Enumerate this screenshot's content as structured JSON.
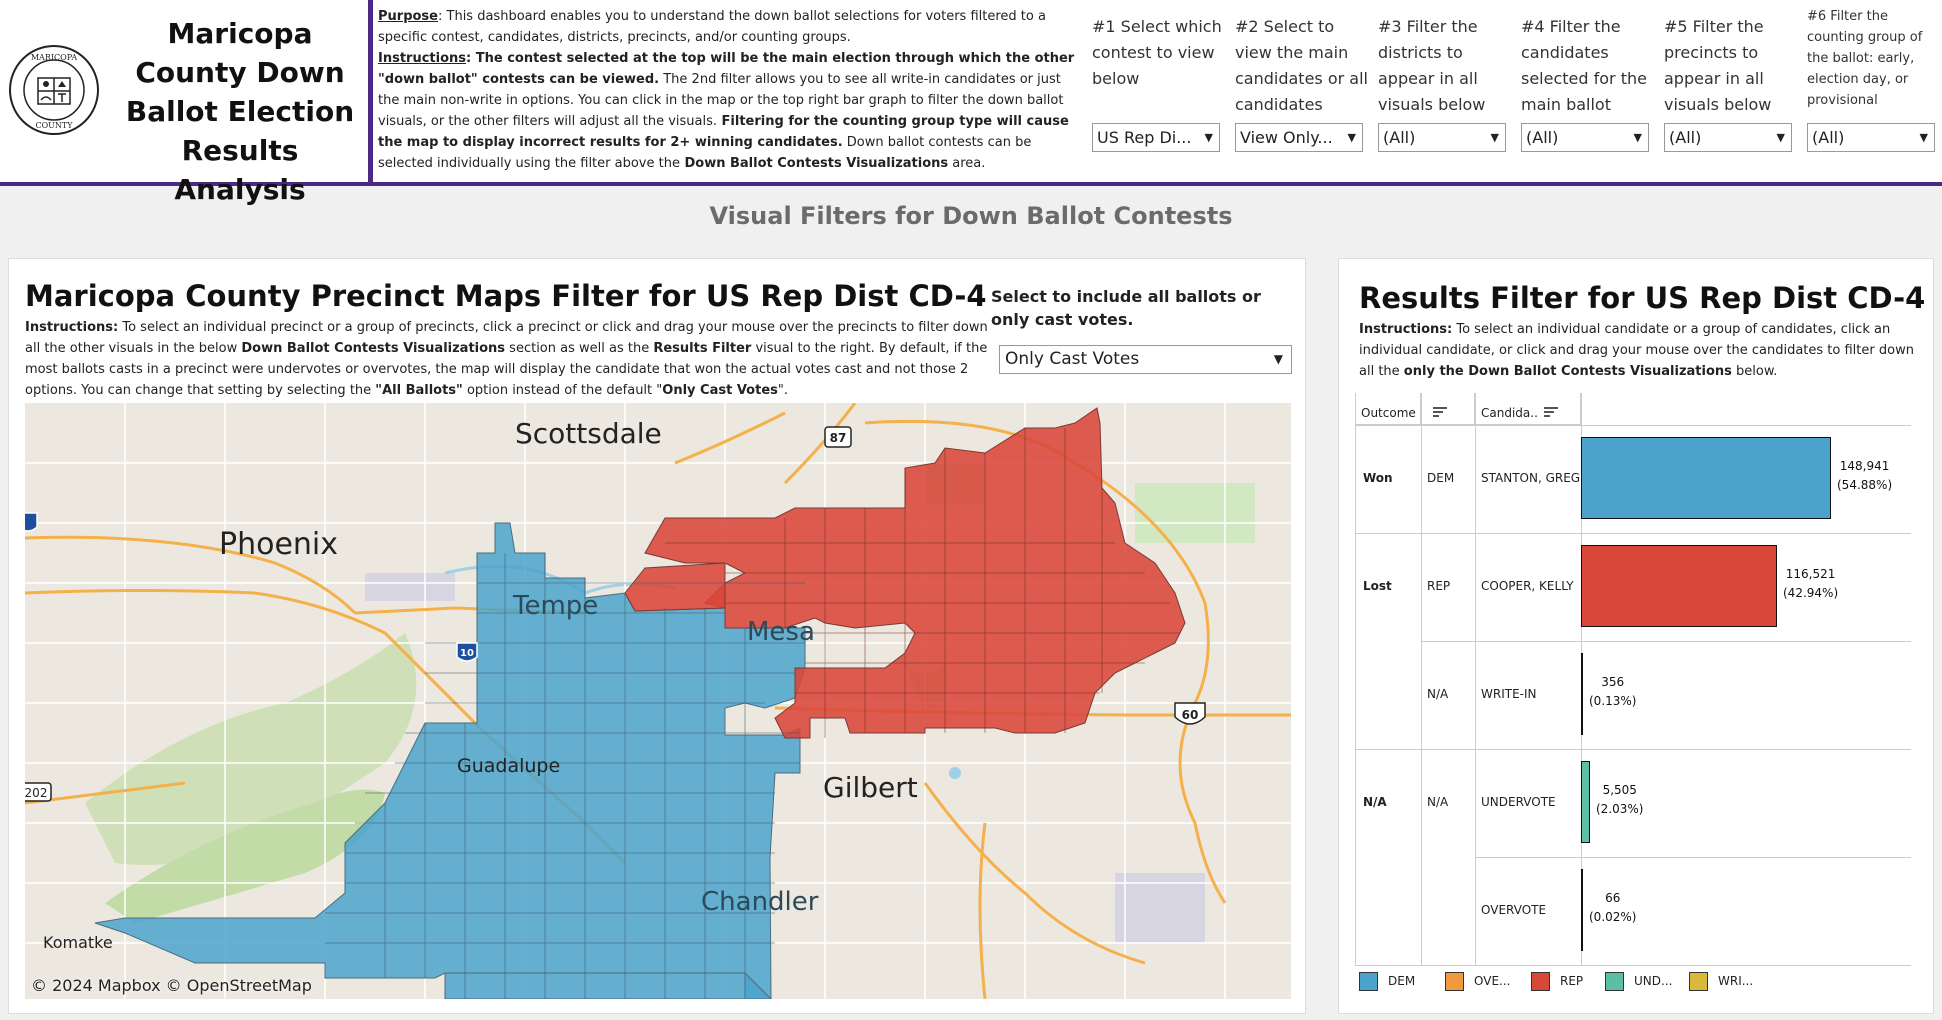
{
  "header": {
    "title": "Maricopa County Down Ballot Election Results Analysis",
    "seal_text_top": "MARICOPA",
    "seal_text_bottom": "COUNTY",
    "purpose_label": "Purpose",
    "purpose_text": ": This dashboard enables you to understand the down ballot selections for voters filtered to a specific contest, candidates, districts, precincts, and/or counting groups.",
    "instructions_label": "Instructions",
    "instructions_bold": ": The contest selected at the top will be the main election through which the other \"down ballot\" contests can be viewed.",
    "instructions_text1": " The 2nd filter allows you to see all write-in candidates or just the main non-write in options. You can click in the map or the top right bar graph to filter the down ballot visuals, or the other filters will adjust all the visuals.",
    "instructions_bold2": " Filtering for the counting group type will cause the map to display incorrect results for 2+ winning candidates.",
    "instructions_text2": " Down ballot contests can be selected individually using the filter above the",
    "instructions_bold3": " Down Ballot Contests Visualizations",
    "instructions_text3": " area."
  },
  "filters": [
    {
      "label": "#1 Select which contest to view below",
      "value": "US Rep Di..."
    },
    {
      "label": "#2 Select to view the main candidates or all candidates",
      "value": "View Only..."
    },
    {
      "label": "#3 Filter the districts to appear in all visuals below",
      "value": "(All)"
    },
    {
      "label": "#4 Filter the candidates selected for the main ballot",
      "value": "(All)"
    },
    {
      "label": "#5 Filter the precincts to appear in all visuals below",
      "value": "(All)"
    },
    {
      "label": "#6 Filter the counting group of the ballot: early, election day, or provisional",
      "value": "(All)"
    }
  ],
  "section_title": "Visual Filters for Down Ballot Contests",
  "map_panel": {
    "title": "Maricopa County Precinct Maps Filter for US Rep Dist CD-4",
    "instr_label": "Instructions:",
    "instr_text1": " To select an individual precinct or a group of precincts, click a precinct or click and drag your mouse over the precincts to filter down all the other visuals in the below ",
    "instr_bold1": "Down Ballot Contests Visualizations",
    "instr_text2": " section as well as the ",
    "instr_bold2": "Results Filter",
    "instr_text3": " visual to the right. By default, if the most ballots casts in a precinct were undervotes or overvotes, the map will display the candidate that won the actual votes cast and not those 2 options. You can change that setting by selecting the ",
    "instr_bold3": "\"All Ballots\"",
    "instr_text4": " option instead of the default \"",
    "instr_bold4": "Only Cast Votes",
    "instr_text5": "\".",
    "cast_label": "Select to include all ballots or only cast votes.",
    "cast_value": "Only Cast Votes",
    "map_labels": {
      "scottsdale": "Scottsdale",
      "phoenix": "Phoenix",
      "tempe": "Tempe",
      "mesa": "Mesa",
      "guadalupe": "Guadalupe",
      "gilbert": "Gilbert",
      "chandler": "Chandler",
      "komatke": "Komatke",
      "hwy87": "87",
      "hwy10": "10",
      "hwy60": "60",
      "hwy202": "202"
    },
    "attribution": "© 2024 Mapbox  © OpenStreetMap",
    "colors": {
      "dem": "#4ba3cc",
      "rep": "#d9463a",
      "water": "#9fd0e8",
      "park": "#c6e3b4",
      "road": "#f4b04b"
    }
  },
  "results_panel": {
    "title": "Results Filter for US Rep Dist CD-4",
    "instr_label": "Instructions:",
    "instr_text1": " To select an individual candidate or a group of candidates, click an individual candidate, or click and drag your mouse over the candidates to filter down all the ",
    "instr_bold": "only the Down Ballot Contests Visualizations",
    "instr_text2": " below.",
    "col_outcome": "Outcome",
    "col_candidate": "Candida..",
    "rows": [
      {
        "outcome": "Won",
        "party": "DEM",
        "candidate": "STANTON, GREG",
        "votes": "148,941",
        "pct": "(54.88%)",
        "share": 54.88,
        "color": "#4ba3cc"
      },
      {
        "outcome": "Lost",
        "party": "REP",
        "candidate": "COOPER, KELLY",
        "votes": "116,521",
        "pct": "(42.94%)",
        "share": 42.94,
        "color": "#d9463a"
      },
      {
        "outcome": "",
        "party": "N/A",
        "candidate": "WRITE-IN",
        "votes": "356",
        "pct": "(0.13%)",
        "share": 0.13,
        "color": "#d9b93a"
      },
      {
        "outcome": "N/A",
        "party": "N/A",
        "candidate": "UNDERVOTE",
        "votes": "5,505",
        "pct": "(2.03%)",
        "share": 2.03,
        "color": "#5bbfa5"
      },
      {
        "outcome": "",
        "party": "",
        "candidate": "OVERVOTE",
        "votes": "66",
        "pct": "(0.02%)",
        "share": 0.02,
        "color": "#ef9a3e"
      }
    ],
    "legend": [
      {
        "label": "DEM",
        "color": "#4ba3cc"
      },
      {
        "label": "OVE...",
        "color": "#ef9a3e"
      },
      {
        "label": "REP",
        "color": "#d9463a"
      },
      {
        "label": "UND...",
        "color": "#5bbfa5"
      },
      {
        "label": "WRI...",
        "color": "#d9b93a"
      }
    ]
  }
}
